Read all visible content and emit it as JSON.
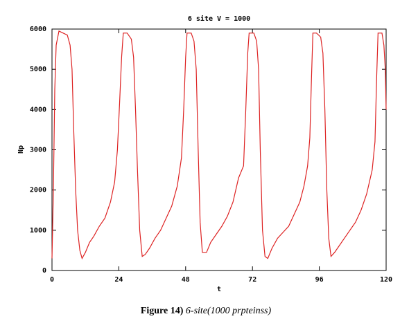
{
  "chart_data": {
    "type": "line",
    "title": "6 site V = 1000",
    "xlabel": "t",
    "ylabel": "Np",
    "x": [
      0,
      0.5,
      1,
      1.5,
      2.5,
      4,
      5.5,
      6.5,
      7.2,
      7.8,
      8.5,
      9.2,
      10,
      10.8,
      12,
      13.5,
      15,
      17,
      19,
      21,
      22.5,
      23.5,
      24.3,
      25,
      25.6,
      27,
      28.5,
      29.3,
      30,
      30.7,
      31.5,
      32.4,
      33.5,
      35,
      37,
      39,
      41,
      43,
      45,
      46.5,
      47.3,
      48,
      48.5,
      50,
      51,
      51.8,
      52.5,
      53.2,
      54,
      55.5,
      57,
      59,
      61,
      63,
      65,
      67,
      68.8,
      69.6,
      70.3,
      70.8,
      72.5,
      73.5,
      74.2,
      74.8,
      75.6,
      76.5,
      77.5,
      79,
      81,
      83,
      85,
      87,
      89,
      90.5,
      91.8,
      92.6,
      93.2,
      93.7,
      95,
      96.5,
      97.3,
      98,
      98.7,
      99.4,
      100.2,
      101.5,
      103,
      105,
      107,
      109,
      111,
      113,
      115,
      116,
      116.6,
      117.1,
      118.5,
      119.2,
      119.7,
      120
    ],
    "series": [
      {
        "color": "#dd2222",
        "values": [
          300,
          2000,
          4500,
          5600,
          5950,
          5900,
          5850,
          5600,
          5000,
          3500,
          2000,
          1000,
          500,
          300,
          450,
          700,
          850,
          1100,
          1300,
          1700,
          2200,
          3000,
          4200,
          5300,
          5900,
          5900,
          5750,
          5300,
          4000,
          2500,
          1000,
          350,
          400,
          550,
          800,
          1000,
          1300,
          1600,
          2100,
          2800,
          4000,
          5300,
          5900,
          5900,
          5700,
          5000,
          3000,
          1200,
          450,
          450,
          700,
          900,
          1100,
          1350,
          1700,
          2300,
          2600,
          4000,
          5400,
          5900,
          5900,
          5700,
          5000,
          3000,
          1000,
          350,
          300,
          550,
          800,
          950,
          1100,
          1400,
          1700,
          2100,
          2600,
          3300,
          4800,
          5900,
          5900,
          5800,
          5400,
          4000,
          2000,
          800,
          350,
          450,
          600,
          800,
          1000,
          1200,
          1500,
          1900,
          2500,
          3200,
          4800,
          5900,
          5900,
          5600,
          5000,
          4000
        ]
      }
    ],
    "xlim": [
      0,
      120
    ],
    "xticks": [
      0,
      24,
      48,
      72,
      96,
      120
    ],
    "ylim": [
      0,
      6000
    ],
    "yticks": [
      0,
      1000,
      2000,
      3000,
      4000,
      5000,
      6000
    ]
  },
  "caption": {
    "label": "Figure 14)",
    "text": "6-site(1000 prpteinss)"
  }
}
